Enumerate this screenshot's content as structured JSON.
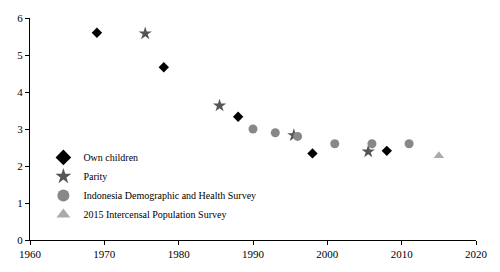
{
  "chart_data": {
    "type": "scatter",
    "xlim": [
      1960,
      2020
    ],
    "xticks": [
      1960,
      1970,
      1980,
      1990,
      2000,
      2010,
      2020
    ],
    "ylim": [
      0,
      6
    ],
    "yticks": [
      0,
      1,
      2,
      3,
      4,
      5,
      6
    ],
    "grid": false,
    "legend": "lower left",
    "series": [
      {
        "name": "Own children",
        "color": "#000000",
        "marker": "diamond",
        "x": [
          1969,
          1978,
          1988,
          1998,
          2008
        ],
        "values": [
          5.6,
          4.67,
          3.33,
          2.34,
          2.41
        ]
      },
      {
        "name": "Parity",
        "color": "#555555",
        "marker": "star",
        "x": [
          1975.5,
          1985.5,
          1995.5,
          2005.5
        ],
        "values": [
          5.58,
          3.63,
          2.83,
          2.39
        ]
      },
      {
        "name": "Indonesia Demographic and Health Survey",
        "color": "#888888",
        "marker": "circle",
        "x": [
          1990,
          1993,
          1996,
          2001,
          2006,
          2011
        ],
        "values": [
          3.0,
          2.9,
          2.8,
          2.6,
          2.6,
          2.6
        ]
      },
      {
        "name": "2015 Intercensal Population Survey",
        "color": "#aaaaaa",
        "marker": "triangle-up",
        "x": [
          2015
        ],
        "values": [
          2.28
        ]
      }
    ]
  }
}
